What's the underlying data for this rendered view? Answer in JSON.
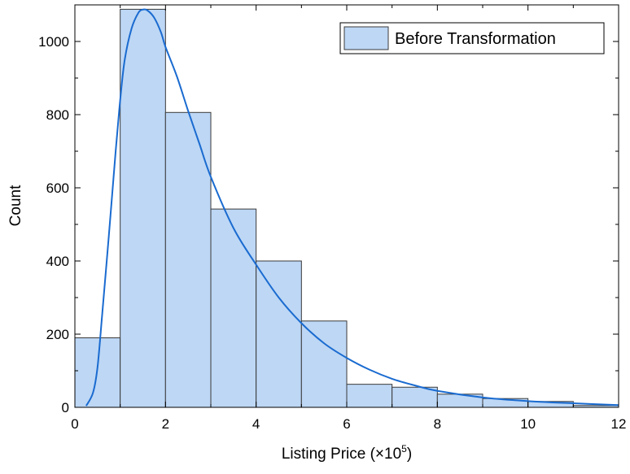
{
  "chart_data": {
    "type": "bar",
    "subtype": "histogram",
    "xlabel": "Listing Price (×10",
    "xlabel_exponent": "5",
    "xlabel_close": ")",
    "ylabel": "Count",
    "xlim": [
      0,
      12
    ],
    "ylim": [
      0,
      1100
    ],
    "x_ticks": [
      "0",
      "2",
      "4",
      "6",
      "8",
      "10",
      "12"
    ],
    "y_ticks": [
      "0",
      "200",
      "400",
      "600",
      "800",
      "1000"
    ],
    "bins": [
      {
        "x0": 0,
        "x1": 1,
        "count": 190
      },
      {
        "x0": 1,
        "x1": 2,
        "count": 1088
      },
      {
        "x0": 2,
        "x1": 3,
        "count": 806
      },
      {
        "x0": 3,
        "x1": 4,
        "count": 542
      },
      {
        "x0": 4,
        "x1": 5,
        "count": 400
      },
      {
        "x0": 5,
        "x1": 6,
        "count": 236
      },
      {
        "x0": 6,
        "x1": 7,
        "count": 63
      },
      {
        "x0": 7,
        "x1": 8,
        "count": 55
      },
      {
        "x0": 8,
        "x1": 9,
        "count": 36
      },
      {
        "x0": 9,
        "x1": 10,
        "count": 24
      },
      {
        "x0": 10,
        "x1": 11,
        "count": 16
      },
      {
        "x0": 11,
        "x1": 12,
        "count": 5
      }
    ],
    "fit_curve": {
      "x": [
        0.25,
        0.4,
        0.5,
        0.6,
        0.75,
        0.9,
        1.0,
        1.1,
        1.25,
        1.4,
        1.5,
        1.6,
        1.75,
        1.9,
        2.0,
        2.25,
        2.5,
        2.75,
        3.0,
        3.5,
        4.0,
        4.5,
        5.0,
        5.5,
        6.0,
        6.5,
        7.0,
        7.5,
        8.0,
        9.0,
        10.0,
        11.0,
        12.0
      ],
      "y": [
        4,
        40,
        110,
        250,
        470,
        700,
        840,
        950,
        1035,
        1078,
        1087,
        1085,
        1065,
        1025,
        985,
        905,
        810,
        720,
        630,
        490,
        390,
        300,
        230,
        175,
        135,
        103,
        78,
        60,
        45,
        27,
        17,
        11,
        6
      ]
    },
    "legend": {
      "label": "Before Transformation",
      "position": "top-right"
    },
    "grid": false,
    "colors": {
      "bar_fill": "#bdd7f5",
      "bar_edge": "#3a3a3a",
      "curve": "#1a6bd0",
      "axis": "#000000"
    }
  }
}
